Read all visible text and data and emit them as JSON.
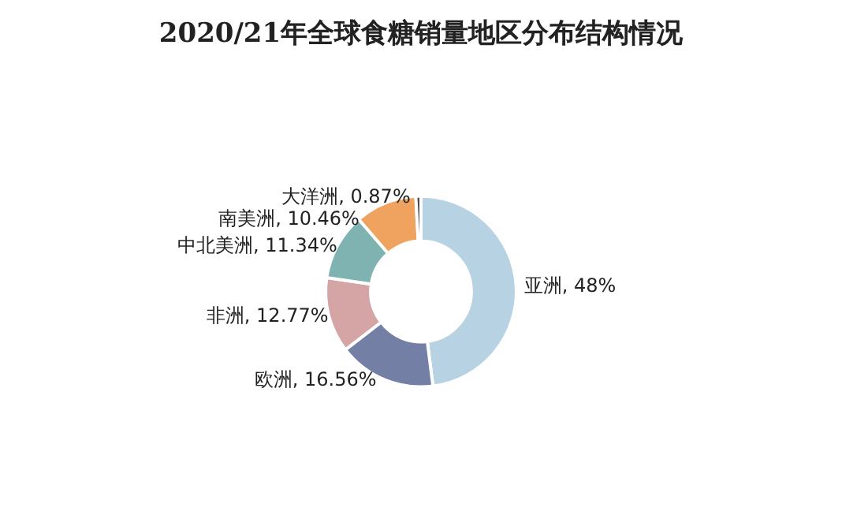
{
  "chart_data": {
    "type": "donut",
    "title": "2020/21年全球食糖销量地区分布结构情况",
    "categories": [
      "亚洲",
      "欧洲",
      "非洲",
      "中北美洲",
      "南美洲",
      "大洋洲"
    ],
    "values": [
      48,
      16.56,
      12.77,
      11.34,
      10.46,
      0.87
    ],
    "value_labels": [
      "48%",
      "16.56%",
      "12.77%",
      "11.34%",
      "10.46%",
      "0.87%"
    ],
    "colors": [
      "#b7d3e3",
      "#737fa5",
      "#d4a5a4",
      "#7fb3b1",
      "#f0a25f",
      "#4d4d4d"
    ],
    "legend": false
  }
}
